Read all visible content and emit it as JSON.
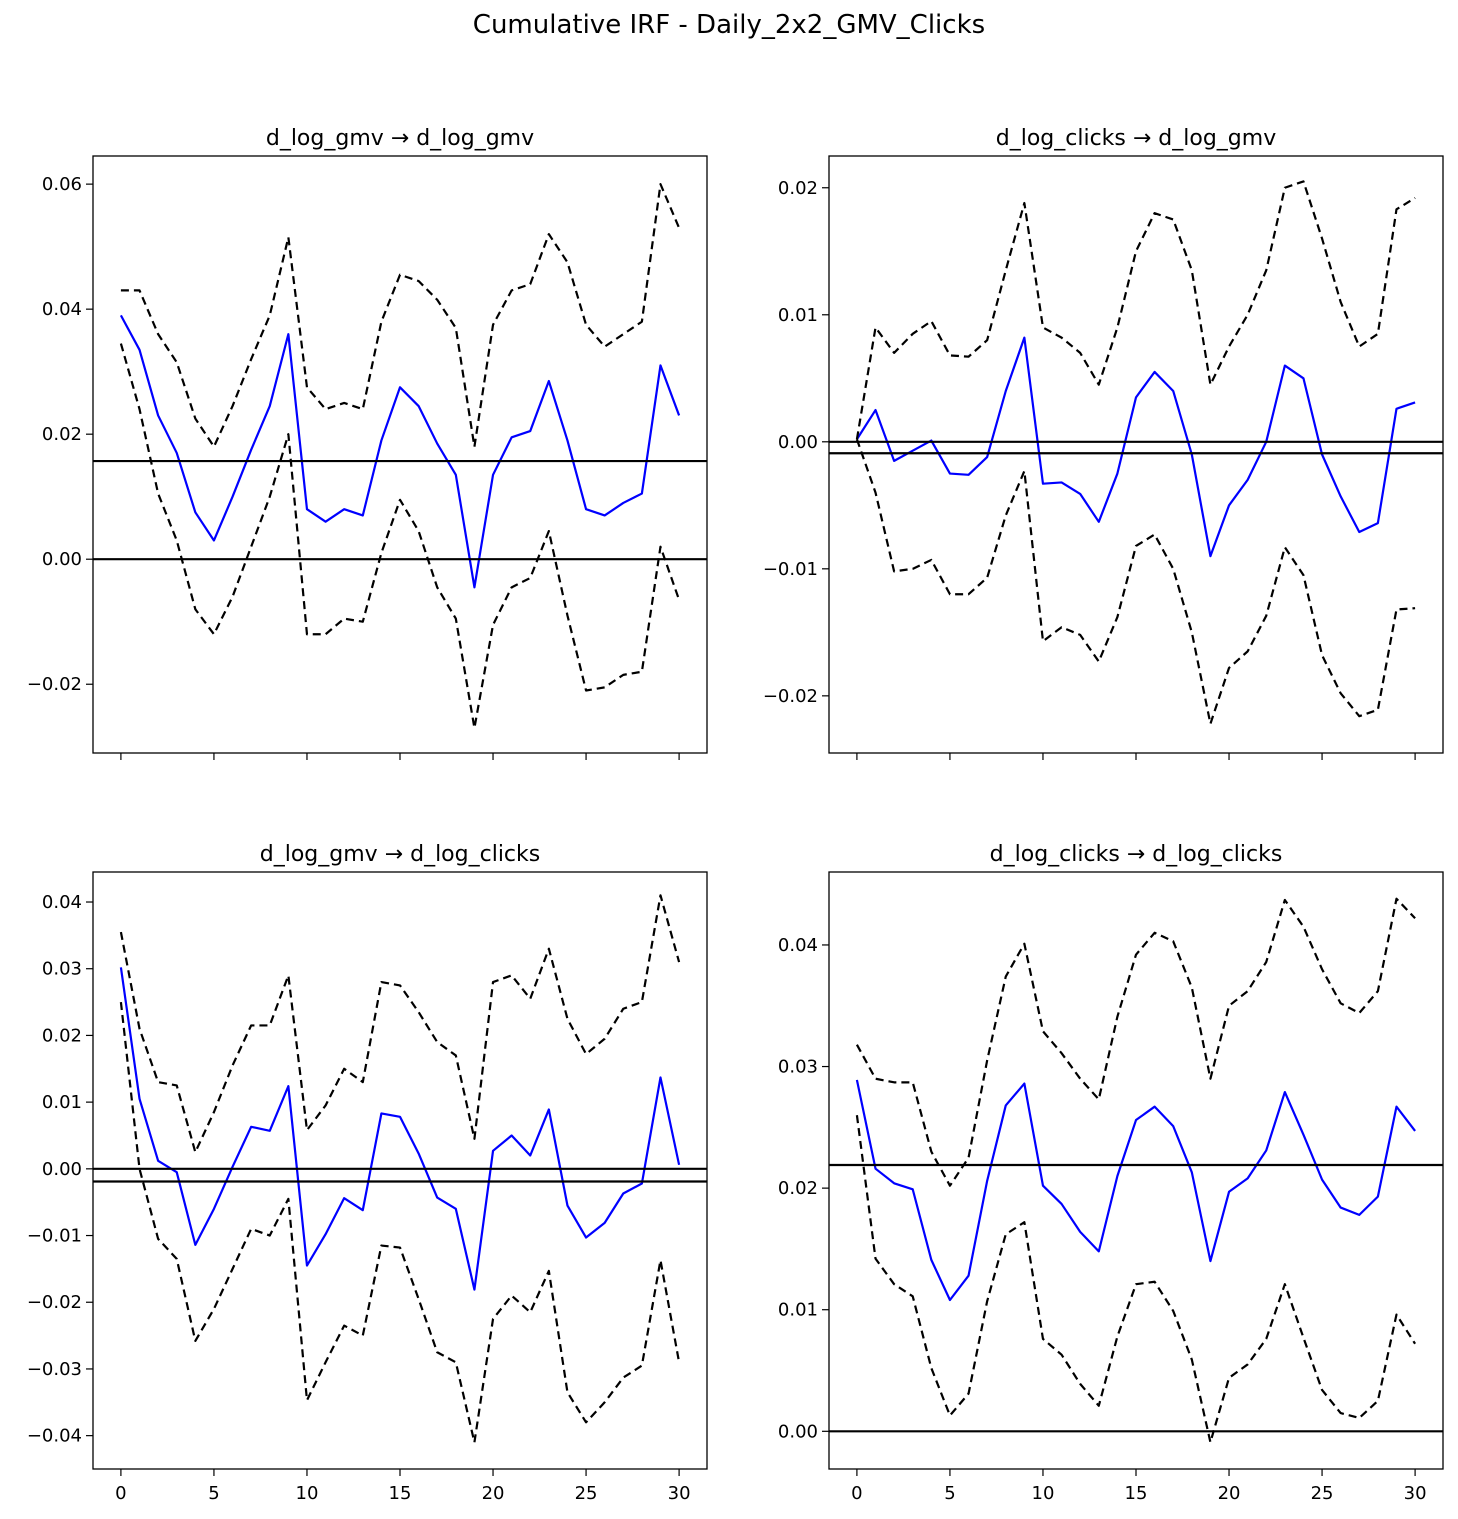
{
  "figure": {
    "title": "Cumulative IRF - Daily_2x2_GMV_Clicks"
  },
  "colors": {
    "irf_line": "#0000ff",
    "band_line": "#000000",
    "axis": "#000000",
    "background": "#ffffff"
  },
  "chart_data": [
    {
      "type": "line",
      "position": "top-left",
      "title": "d_log_gmv → d_log_gmv",
      "x": [
        0,
        1,
        2,
        3,
        4,
        5,
        6,
        7,
        8,
        9,
        10,
        11,
        12,
        13,
        14,
        15,
        16,
        17,
        18,
        19,
        20,
        21,
        22,
        23,
        24,
        25,
        26,
        27,
        28,
        29,
        30
      ],
      "xlim": [
        -1.5,
        31.5
      ],
      "ylim": [
        -0.031,
        0.0645
      ],
      "xticks": [
        0,
        5,
        10,
        15,
        20,
        25,
        30
      ],
      "xticklabels": [],
      "yticks": [
        -0.02,
        0.0,
        0.02,
        0.04,
        0.06
      ],
      "yticklabels": [
        "−0.02",
        "0.00",
        "0.02",
        "0.04",
        "0.06"
      ],
      "hlines": [
        0.0,
        0.0157
      ],
      "series": [
        {
          "name": "irf",
          "style": "solid",
          "values": [
            0.039,
            0.0335,
            0.023,
            0.017,
            0.0075,
            0.003,
            0.01,
            0.0175,
            0.0245,
            0.036,
            0.008,
            0.006,
            0.008,
            0.007,
            0.019,
            0.0275,
            0.0245,
            0.0185,
            0.0135,
            -0.0045,
            0.0135,
            0.0195,
            0.0205,
            0.0285,
            0.019,
            0.008,
            0.007,
            0.009,
            0.0105,
            0.031,
            0.023
          ]
        },
        {
          "name": "upper",
          "style": "dashed",
          "values": [
            0.043,
            0.043,
            0.036,
            0.0315,
            0.0225,
            0.018,
            0.0245,
            0.032,
            0.039,
            0.0515,
            0.0275,
            0.024,
            0.025,
            0.024,
            0.038,
            0.0455,
            0.0445,
            0.0415,
            0.037,
            0.018,
            0.0375,
            0.043,
            0.044,
            0.052,
            0.0475,
            0.0375,
            0.034,
            0.036,
            0.038,
            0.06,
            0.053
          ]
        },
        {
          "name": "lower",
          "style": "dashed",
          "values": [
            0.0345,
            0.024,
            0.0105,
            0.003,
            -0.008,
            -0.012,
            -0.006,
            0.002,
            0.01,
            0.02,
            -0.012,
            -0.012,
            -0.0095,
            -0.01,
            0.001,
            0.0095,
            0.0045,
            -0.0045,
            -0.0095,
            -0.027,
            -0.0105,
            -0.0045,
            -0.003,
            0.0045,
            -0.009,
            -0.021,
            -0.0205,
            -0.0185,
            -0.018,
            0.002,
            -0.0065
          ]
        }
      ]
    },
    {
      "type": "line",
      "position": "top-right",
      "title": "d_log_clicks → d_log_gmv",
      "x": [
        0,
        1,
        2,
        3,
        4,
        5,
        6,
        7,
        8,
        9,
        10,
        11,
        12,
        13,
        14,
        15,
        16,
        17,
        18,
        19,
        20,
        21,
        22,
        23,
        24,
        25,
        26,
        27,
        28,
        29,
        30
      ],
      "xlim": [
        -1.5,
        31.5
      ],
      "ylim": [
        -0.0245,
        0.0225
      ],
      "xticks": [
        0,
        5,
        10,
        15,
        20,
        25,
        30
      ],
      "xticklabels": [],
      "yticks": [
        -0.02,
        -0.01,
        0.0,
        0.01,
        0.02
      ],
      "yticklabels": [
        "−0.02",
        "−0.01",
        "0.00",
        "0.01",
        "0.02"
      ],
      "hlines": [
        0.0,
        -0.0009
      ],
      "series": [
        {
          "name": "irf",
          "style": "solid",
          "values": [
            0.0002,
            0.0025,
            -0.0015,
            -0.0007,
            0.0001,
            -0.0025,
            -0.0026,
            -0.0012,
            0.004,
            0.0082,
            -0.0033,
            -0.0032,
            -0.0041,
            -0.0063,
            -0.0025,
            0.0035,
            0.0055,
            0.004,
            -0.001,
            -0.009,
            -0.005,
            -0.003,
            0.0,
            0.006,
            0.005,
            -0.001,
            -0.0043,
            -0.0071,
            -0.0064,
            0.0026,
            0.0031
          ]
        },
        {
          "name": "upper",
          "style": "dashed",
          "values": [
            0.0002,
            0.009,
            0.007,
            0.0085,
            0.0095,
            0.0068,
            0.0067,
            0.008,
            0.0135,
            0.0188,
            0.009,
            0.0082,
            0.007,
            0.0045,
            0.009,
            0.015,
            0.018,
            0.0175,
            0.0135,
            0.0045,
            0.0075,
            0.01,
            0.0135,
            0.02,
            0.0205,
            0.016,
            0.011,
            0.0075,
            0.0085,
            0.0183,
            0.0192
          ]
        },
        {
          "name": "lower",
          "style": "dashed",
          "values": [
            0.0002,
            -0.004,
            -0.0102,
            -0.01,
            -0.0093,
            -0.012,
            -0.012,
            -0.0107,
            -0.0058,
            -0.0023,
            -0.0157,
            -0.0146,
            -0.0152,
            -0.0173,
            -0.0138,
            -0.0082,
            -0.0073,
            -0.01,
            -0.015,
            -0.0222,
            -0.0178,
            -0.0165,
            -0.0137,
            -0.0083,
            -0.0105,
            -0.0168,
            -0.0198,
            -0.0216,
            -0.0211,
            -0.0132,
            -0.0131
          ]
        }
      ]
    },
    {
      "type": "line",
      "position": "bottom-left",
      "title": "d_log_gmv → d_log_clicks",
      "x": [
        0,
        1,
        2,
        3,
        4,
        5,
        6,
        7,
        8,
        9,
        10,
        11,
        12,
        13,
        14,
        15,
        16,
        17,
        18,
        19,
        20,
        21,
        22,
        23,
        24,
        25,
        26,
        27,
        28,
        29,
        30
      ],
      "xlim": [
        -1.5,
        31.5
      ],
      "ylim": [
        -0.045,
        0.0445
      ],
      "xticks": [
        0,
        5,
        10,
        15,
        20,
        25,
        30
      ],
      "xticklabels": [
        "0",
        "5",
        "10",
        "15",
        "20",
        "25",
        "30"
      ],
      "yticks": [
        -0.04,
        -0.03,
        -0.02,
        -0.01,
        0.0,
        0.01,
        0.02,
        0.03,
        0.04
      ],
      "yticklabels": [
        "−0.04",
        "−0.03",
        "−0.02",
        "−0.01",
        "0.00",
        "0.01",
        "0.02",
        "0.03",
        "0.04"
      ],
      "hlines": [
        0.0,
        -0.0019
      ],
      "series": [
        {
          "name": "irf",
          "style": "solid",
          "values": [
            0.0302,
            0.0105,
            0.0012,
            -0.0005,
            -0.0114,
            -0.006,
            0.0003,
            0.0063,
            0.0057,
            0.0124,
            -0.0145,
            -0.0098,
            -0.0044,
            -0.0062,
            0.0083,
            0.0078,
            0.0023,
            -0.0043,
            -0.006,
            -0.0181,
            0.0027,
            0.005,
            0.002,
            0.0089,
            -0.0055,
            -0.0103,
            -0.0081,
            -0.0037,
            -0.0022,
            0.0137,
            0.0006
          ]
        },
        {
          "name": "upper",
          "style": "dashed",
          "values": [
            0.0355,
            0.021,
            0.013,
            0.0125,
            0.0025,
            0.0085,
            0.0155,
            0.0215,
            0.0215,
            0.029,
            0.0058,
            0.0095,
            0.015,
            0.013,
            0.028,
            0.0275,
            0.0235,
            0.019,
            0.017,
            0.0045,
            0.028,
            0.029,
            0.0255,
            0.033,
            0.0225,
            0.0172,
            0.0195,
            0.024,
            0.025,
            0.041,
            0.031
          ]
        },
        {
          "name": "lower",
          "style": "dashed",
          "values": [
            0.025,
            0.0,
            -0.0105,
            -0.0135,
            -0.0258,
            -0.021,
            -0.015,
            -0.009,
            -0.01,
            -0.0045,
            -0.0347,
            -0.029,
            -0.0235,
            -0.025,
            -0.0115,
            -0.0118,
            -0.0195,
            -0.0275,
            -0.029,
            -0.041,
            -0.0225,
            -0.019,
            -0.0215,
            -0.0153,
            -0.0335,
            -0.038,
            -0.035,
            -0.0313,
            -0.0295,
            -0.0137,
            -0.029
          ]
        }
      ]
    },
    {
      "type": "line",
      "position": "bottom-right",
      "title": "d_log_clicks → d_log_clicks",
      "x": [
        0,
        1,
        2,
        3,
        4,
        5,
        6,
        7,
        8,
        9,
        10,
        11,
        12,
        13,
        14,
        15,
        16,
        17,
        18,
        19,
        20,
        21,
        22,
        23,
        24,
        25,
        26,
        27,
        28,
        29,
        30
      ],
      "xlim": [
        -1.5,
        31.5
      ],
      "ylim": [
        -0.0031,
        0.046
      ],
      "xticks": [
        0,
        5,
        10,
        15,
        20,
        25,
        30
      ],
      "xticklabels": [
        "0",
        "5",
        "10",
        "15",
        "20",
        "25",
        "30"
      ],
      "yticks": [
        0.0,
        0.01,
        0.02,
        0.03,
        0.04
      ],
      "yticklabels": [
        "0.00",
        "0.01",
        "0.02",
        "0.03",
        "0.04"
      ],
      "hlines": [
        0.0,
        0.0219
      ],
      "series": [
        {
          "name": "irf",
          "style": "solid",
          "values": [
            0.0289,
            0.0216,
            0.0204,
            0.0199,
            0.0141,
            0.0108,
            0.0128,
            0.0206,
            0.0268,
            0.0286,
            0.0202,
            0.0187,
            0.0164,
            0.0148,
            0.021,
            0.0256,
            0.0267,
            0.0251,
            0.0213,
            0.014,
            0.0197,
            0.0208,
            0.0231,
            0.0279,
            0.0244,
            0.0207,
            0.0184,
            0.0178,
            0.0193,
            0.0267,
            0.0247
          ]
        },
        {
          "name": "upper",
          "style": "dashed",
          "values": [
            0.0318,
            0.029,
            0.0287,
            0.0287,
            0.023,
            0.0202,
            0.0225,
            0.0305,
            0.0374,
            0.0401,
            0.0329,
            0.0311,
            0.029,
            0.0273,
            0.0341,
            0.0392,
            0.041,
            0.0403,
            0.0365,
            0.029,
            0.035,
            0.0362,
            0.0386,
            0.0437,
            0.0415,
            0.038,
            0.0352,
            0.0344,
            0.0362,
            0.0438,
            0.0422
          ]
        },
        {
          "name": "lower",
          "style": "dashed",
          "values": [
            0.026,
            0.0142,
            0.0121,
            0.0111,
            0.0052,
            0.0013,
            0.0031,
            0.0107,
            0.0162,
            0.0172,
            0.0076,
            0.0063,
            0.0039,
            0.0021,
            0.0078,
            0.0121,
            0.0123,
            0.0099,
            0.0059,
            -0.0009,
            0.0044,
            0.0055,
            0.0076,
            0.0121,
            0.0077,
            0.0034,
            0.0015,
            0.0011,
            0.0025,
            0.0096,
            0.0072
          ]
        }
      ]
    }
  ]
}
